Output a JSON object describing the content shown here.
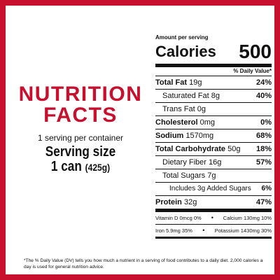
{
  "colors": {
    "brand_red": "#c8102e",
    "text": "#111111"
  },
  "left": {
    "title_line1": "NUTRITION",
    "title_line2": "FACTS",
    "servings_per_container": "1 serving per container",
    "serving_size_label": "Serving size",
    "serving_size_amount": "1 can",
    "serving_size_grams": "(425g)"
  },
  "label": {
    "amount_per_serving": "Amount per serving",
    "calories_label": "Calories",
    "calories_value": "500",
    "daily_value_header": "% Daily Value*",
    "nutrients": [
      {
        "name": "Total Fat",
        "amount": "19g",
        "dv": "24%"
      },
      {
        "name": "Saturated Fat",
        "amount": "8g",
        "dv": "40%"
      },
      {
        "name": "Trans Fat",
        "amount": "0g",
        "dv": ""
      },
      {
        "name": "Cholesterol",
        "amount": "0mg",
        "dv": "0%"
      },
      {
        "name": "Sodium",
        "amount": "1570mg",
        "dv": "68%"
      },
      {
        "name": "Total Carbohydrate",
        "amount": "50g",
        "dv": "18%"
      },
      {
        "name": "Dietary Fiber",
        "amount": "16g",
        "dv": "57%"
      },
      {
        "name": "Total Sugars",
        "amount": "7g",
        "dv": ""
      },
      {
        "name": "Includes 3g Added Sugars",
        "amount": "",
        "dv": "6%"
      },
      {
        "name": "Protein",
        "amount": "32g",
        "dv": "47%"
      }
    ],
    "micros": [
      {
        "left": "Vitamin D 0mcg 0%",
        "right": "Calcium 130mg 10%"
      },
      {
        "left": "Iron 5.9mg 35%",
        "right": "Potassium 1430mg 30%"
      }
    ],
    "bullet": "•"
  },
  "footnote": "*The % Daily Value (DV) tells you how much a nutrient in a serving of food contributes to a daily diet. 2,000 calories a day is used for general nutrition advice."
}
